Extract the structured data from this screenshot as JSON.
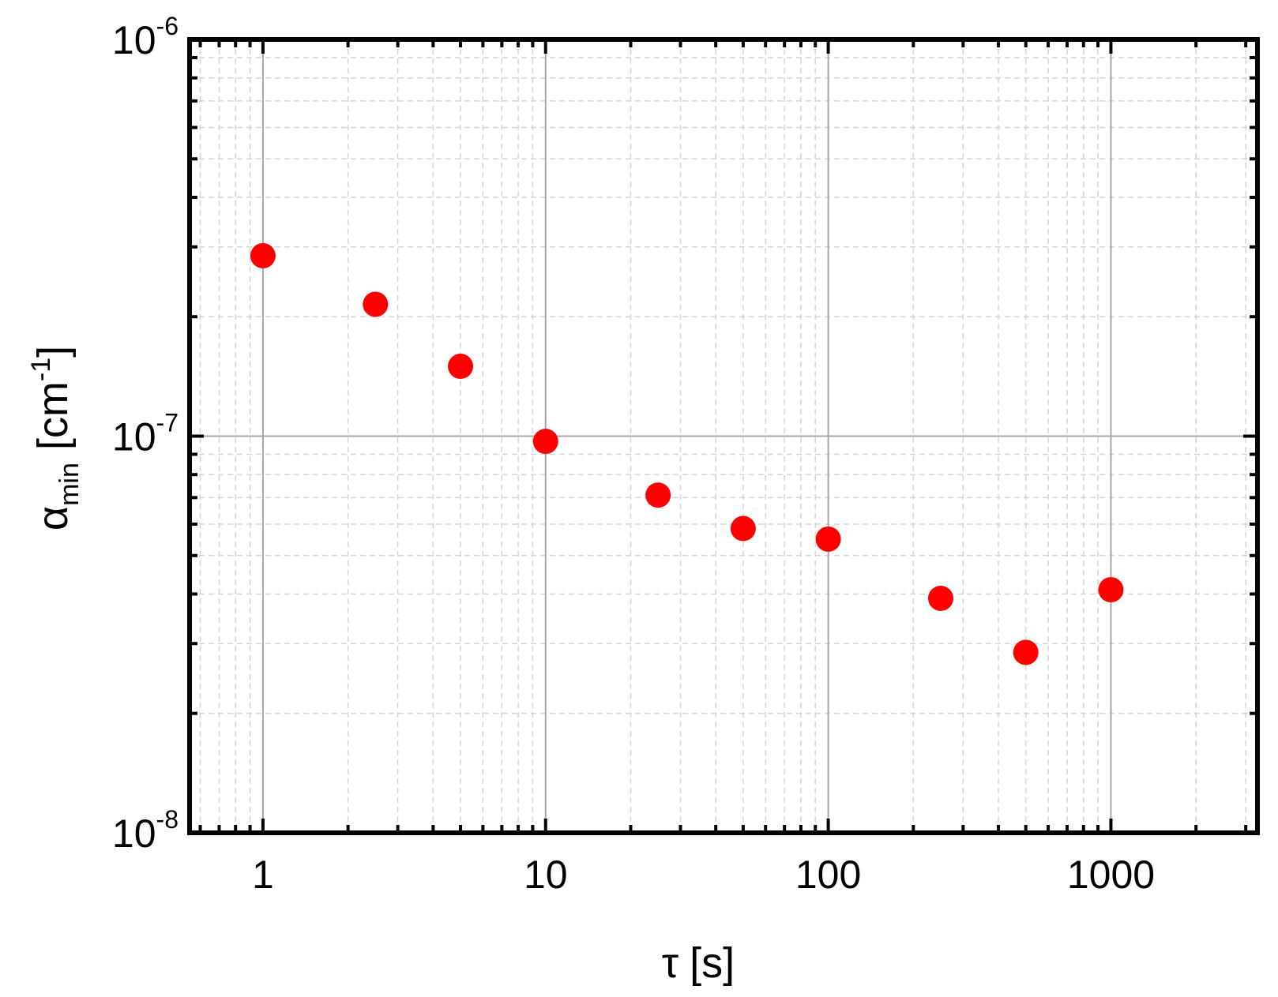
{
  "chart_data": {
    "type": "scatter",
    "x_scale": "log",
    "y_scale": "log",
    "xlim": [
      0.55,
      3300
    ],
    "ylim": [
      1e-08,
      1e-06
    ],
    "grid": true,
    "xlabel": {
      "symbol": "τ",
      "unit": "[s]"
    },
    "ylabel": {
      "symbol": "α",
      "subscript": "min",
      "unit_prefix": "[cm",
      "unit_sup": "-1",
      "unit_suffix": "]"
    },
    "x_ticks": [
      {
        "value": 1,
        "label": "1"
      },
      {
        "value": 10,
        "label": "10"
      },
      {
        "value": 100,
        "label": "100"
      },
      {
        "value": 1000,
        "label": "1000"
      }
    ],
    "y_ticks": [
      {
        "value": 1e-08,
        "base": "10",
        "exp": "-8"
      },
      {
        "value": 1e-07,
        "base": "10",
        "exp": "-7"
      },
      {
        "value": 1e-06,
        "base": "10",
        "exp": "-6"
      }
    ],
    "series": [
      {
        "marker_color": "#ff0000",
        "points": [
          {
            "x": 1,
            "y": 2.85e-07
          },
          {
            "x": 2.5,
            "y": 2.15e-07
          },
          {
            "x": 5,
            "y": 1.5e-07
          },
          {
            "x": 10,
            "y": 9.7e-08
          },
          {
            "x": 25,
            "y": 7.1e-08
          },
          {
            "x": 50,
            "y": 5.85e-08
          },
          {
            "x": 100,
            "y": 5.5e-08
          },
          {
            "x": 250,
            "y": 3.9e-08
          },
          {
            "x": 500,
            "y": 2.85e-08
          },
          {
            "x": 1000,
            "y": 4.1e-08
          }
        ]
      }
    ]
  }
}
